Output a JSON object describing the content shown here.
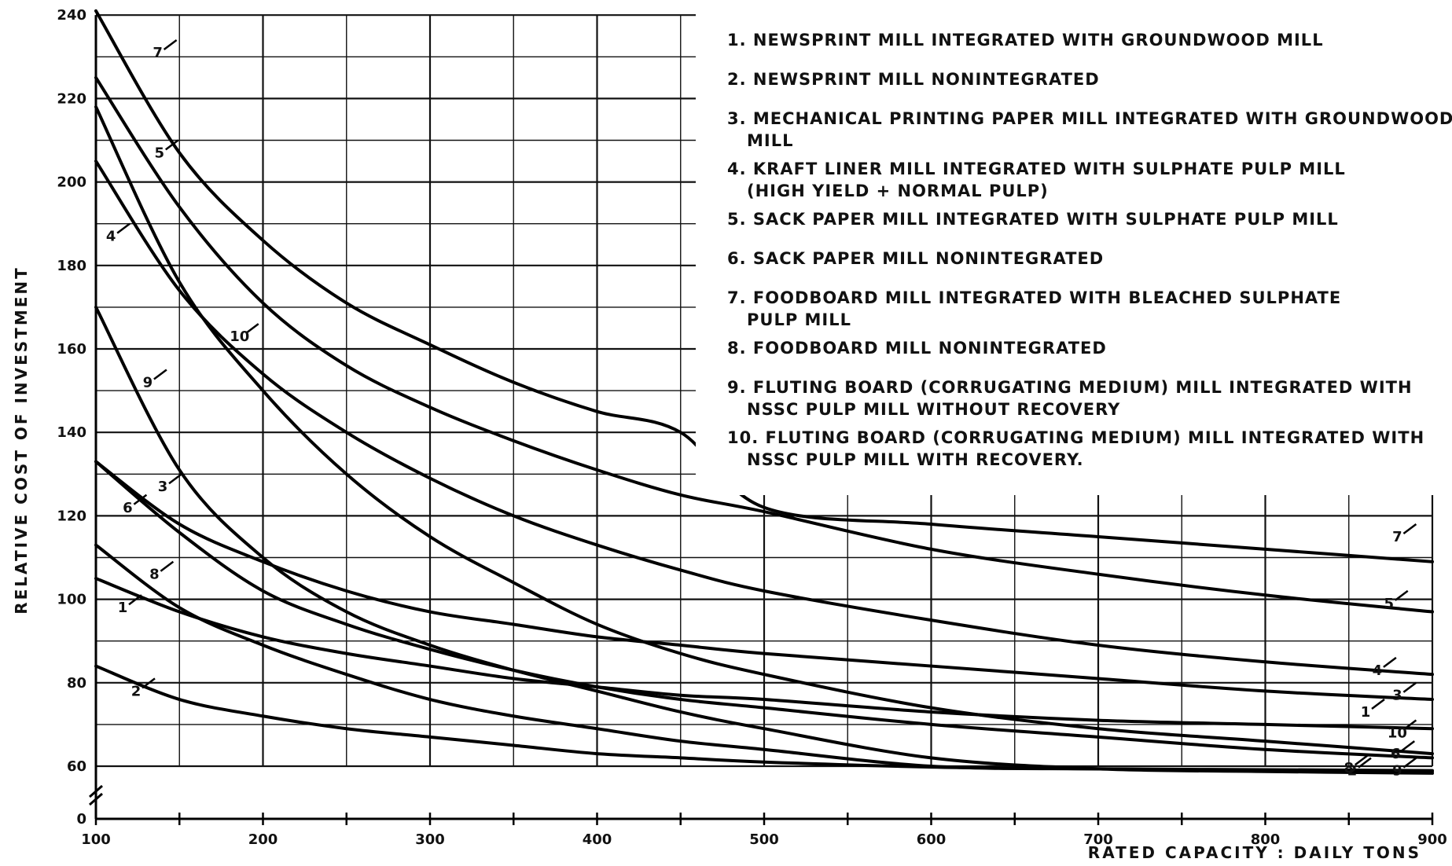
{
  "chart_data": {
    "type": "line",
    "title": "",
    "xlabel": "RATED CAPACITY : DAILY TONS",
    "ylabel": "RELATIVE COST OF INVESTMENT",
    "xlim": [
      100,
      900
    ],
    "ylim": [
      0,
      240
    ],
    "y_axis_break": "between 0 and 60",
    "x_ticks": [
      100,
      200,
      300,
      400,
      500,
      600,
      700,
      800,
      900
    ],
    "y_ticks": [
      0,
      60,
      80,
      100,
      120,
      140,
      160,
      180,
      200,
      220,
      240
    ],
    "grid": true,
    "legend_position": "top-right",
    "legend": [
      {
        "num": "1",
        "lines": [
          "1. NEWSPRINT MILL INTEGRATED WITH GROUNDWOOD MILL"
        ]
      },
      {
        "num": "2",
        "lines": [
          "2. NEWSPRINT MILL NONINTEGRATED"
        ]
      },
      {
        "num": "3",
        "lines": [
          "3. MECHANICAL PRINTING PAPER MILL INTEGRATED WITH GROUNDWOOD",
          "MILL"
        ]
      },
      {
        "num": "4",
        "lines": [
          "4. KRAFT LINER MILL INTEGRATED WITH SULPHATE PULP MILL",
          "(HIGH YIELD + NORMAL PULP)"
        ]
      },
      {
        "num": "5",
        "lines": [
          "5. SACK PAPER MILL INTEGRATED WITH SULPHATE PULP MILL"
        ]
      },
      {
        "num": "6",
        "lines": [
          "6. SACK PAPER MILL NONINTEGRATED"
        ]
      },
      {
        "num": "7",
        "lines": [
          "7. FOODBOARD MILL INTEGRATED WITH BLEACHED SULPHATE",
          "PULP MILL"
        ]
      },
      {
        "num": "8",
        "lines": [
          "8. FOODBOARD MILL NONINTEGRATED"
        ]
      },
      {
        "num": "9",
        "lines": [
          "9. FLUTING BOARD (CORRUGATING MEDIUM) MILL INTEGRATED WITH",
          "NSSC PULP MILL WITHOUT RECOVERY"
        ]
      },
      {
        "num": "10",
        "lines": [
          "10. FLUTING BOARD (CORRUGATING MEDIUM) MILL INTEGRATED WITH",
          "NSSC PULP MILL WITH RECOVERY."
        ]
      }
    ],
    "x": [
      100,
      150,
      200,
      250,
      300,
      350,
      400,
      450,
      500,
      600,
      700,
      800,
      900
    ],
    "series": [
      {
        "name": "1",
        "values": [
          105,
          97,
          91,
          87,
          84,
          81,
          79,
          77,
          76,
          73,
          71,
          70,
          69
        ]
      },
      {
        "name": "2",
        "values": [
          84,
          76,
          72,
          69,
          67,
          65,
          63,
          62,
          61,
          59,
          57,
          55,
          54
        ]
      },
      {
        "name": "3",
        "values": [
          133,
          118,
          109,
          102,
          97,
          94,
          91,
          89,
          87,
          84,
          81,
          78,
          76
        ]
      },
      {
        "name": "4",
        "values": [
          205,
          174,
          154,
          140,
          129,
          120,
          113,
          107,
          102,
          95,
          89,
          85,
          82
        ]
      },
      {
        "name": "5",
        "values": [
          225,
          194,
          171,
          156,
          146,
          138,
          131,
          125,
          121,
          112,
          106,
          101,
          97
        ]
      },
      {
        "name": "6",
        "values": [
          133,
          116,
          102,
          94,
          88,
          83,
          79,
          76,
          74,
          70,
          67,
          64,
          62
        ]
      },
      {
        "name": "7",
        "values": [
          241,
          207,
          186,
          171,
          161,
          152,
          145,
          140,
          122,
          118,
          115,
          112,
          109
        ]
      },
      {
        "name": "8",
        "values": [
          113,
          98,
          89,
          82,
          76,
          72,
          69,
          66,
          64,
          60,
          57,
          56,
          55
        ]
      },
      {
        "name": "9",
        "values": [
          170,
          131,
          110,
          97,
          89,
          83,
          78,
          73,
          69,
          62,
          57,
          54,
          52
        ]
      },
      {
        "name": "10",
        "values": [
          218,
          176,
          150,
          130,
          115,
          104,
          94,
          87,
          82,
          74,
          69,
          66,
          63
        ]
      }
    ],
    "curve_labels": [
      {
        "text": "7",
        "x": 137,
        "y": 231
      },
      {
        "text": "5",
        "x": 138,
        "y": 207
      },
      {
        "text": "4",
        "x": 109,
        "y": 187
      },
      {
        "text": "10",
        "x": 186,
        "y": 163
      },
      {
        "text": "9",
        "x": 131,
        "y": 152
      },
      {
        "text": "3",
        "x": 140,
        "y": 127
      },
      {
        "text": "6",
        "x": 119,
        "y": 122
      },
      {
        "text": "8",
        "x": 135,
        "y": 106
      },
      {
        "text": "1",
        "x": 116,
        "y": 98
      },
      {
        "text": "2",
        "x": 124,
        "y": 78
      },
      {
        "text": "7",
        "x": 879,
        "y": 115
      },
      {
        "text": "5",
        "x": 874,
        "y": 99
      },
      {
        "text": "4",
        "x": 867,
        "y": 83
      },
      {
        "text": "3",
        "x": 879,
        "y": 77
      },
      {
        "text": "1",
        "x": 860,
        "y": 73
      },
      {
        "text": "10",
        "x": 879,
        "y": 68
      },
      {
        "text": "6",
        "x": 878,
        "y": 63
      },
      {
        "text": "8",
        "x": 850,
        "y": 58
      },
      {
        "text": "2",
        "x": 852,
        "y": 55
      },
      {
        "text": "9",
        "x": 879,
        "y": 55
      }
    ]
  }
}
